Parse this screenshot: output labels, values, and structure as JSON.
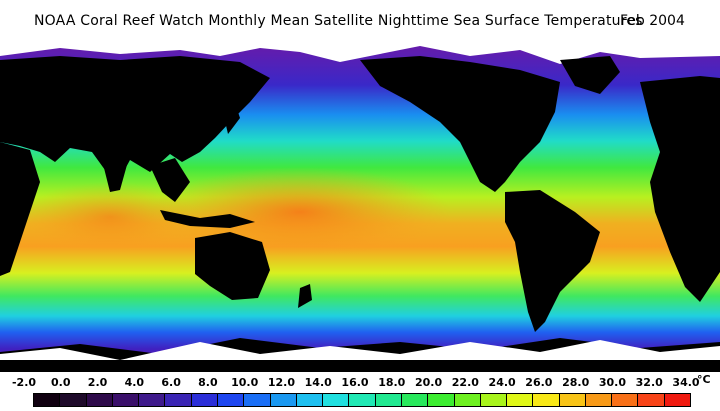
{
  "title": "NOAA Coral Reef Watch Monthly Mean Satellite Nighttime Sea Surface Temperatures",
  "date": "Feb 2004",
  "legend": {
    "ticks": [
      "-2.0",
      "0.0",
      "2.0",
      "4.0",
      "6.0",
      "8.0",
      "10.0",
      "12.0",
      "14.0",
      "16.0",
      "18.0",
      "20.0",
      "22.0",
      "24.0",
      "26.0",
      "28.0",
      "30.0",
      "32.0",
      "34.0"
    ],
    "unit": "°C",
    "colors": [
      "#100010",
      "#1e0a2a",
      "#2e0a4a",
      "#3a0f6a",
      "#3f1a8c",
      "#3a24b4",
      "#2b2ed8",
      "#1e46f0",
      "#1a6ef5",
      "#1a98f0",
      "#1ec0f0",
      "#20e0e0",
      "#20e8b4",
      "#20e890",
      "#28e85c",
      "#3cec30",
      "#6ef020",
      "#a8f41c",
      "#e0f818",
      "#f8e818",
      "#f8c418",
      "#f89a18",
      "#f87018",
      "#f84418",
      "#f01a10"
    ]
  },
  "map": {
    "ocean_colors": {
      "polar": "#5a1ab4",
      "cold": "#2a3cf0",
      "cool": "#1ac8f0",
      "temperate": "#30e860",
      "warm": "#c0f020",
      "tropical": "#f8a020",
      "hot": "#f87820"
    },
    "land_color": "#000000",
    "ice_color": "#ffffff"
  }
}
